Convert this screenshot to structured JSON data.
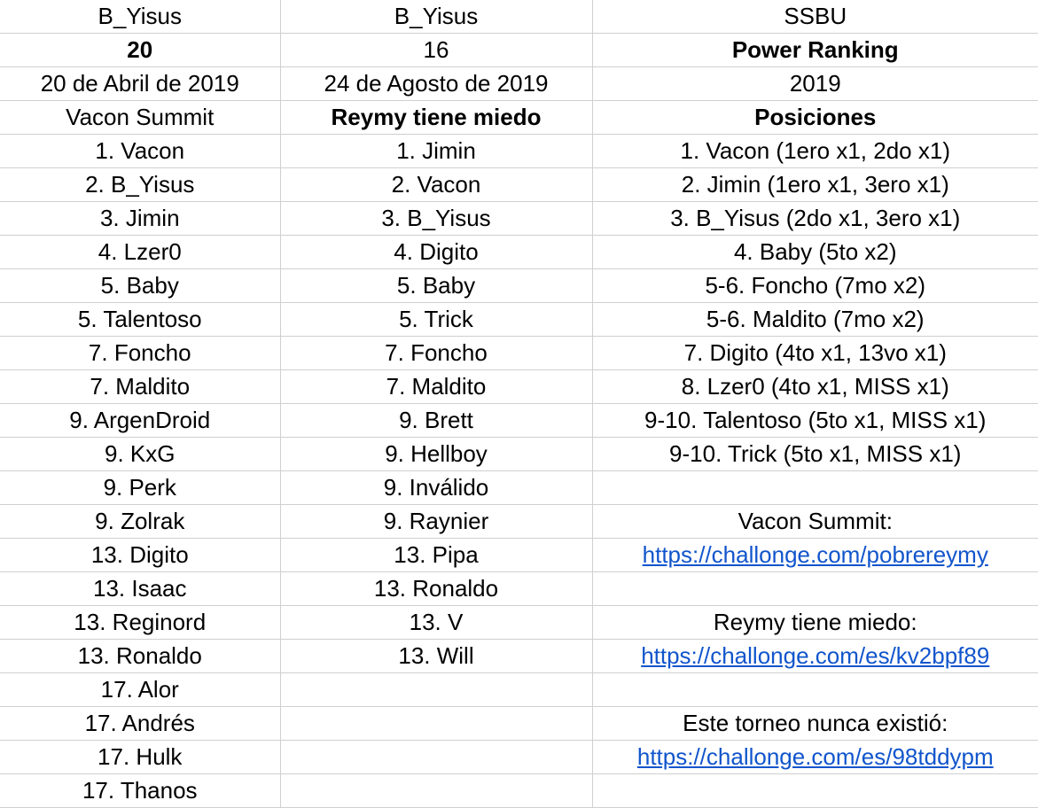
{
  "sheet": {
    "header_rows": [
      [
        "B_Yisus",
        "B_Yisus",
        "SSBU"
      ],
      [
        "20",
        "16",
        "Power Ranking"
      ],
      [
        "20 de Abril de 2019",
        "24 de Agosto de 2019",
        "2019"
      ],
      [
        "Vacon Summit",
        "Reymy tiene miedo",
        "Posiciones"
      ]
    ],
    "bold_cells": [
      [
        1,
        0
      ],
      [
        1,
        2
      ],
      [
        3,
        1
      ],
      [
        3,
        2
      ]
    ],
    "columns": {
      "vacon_summit": [
        "1. Vacon",
        "2. B_Yisus",
        "3. Jimin",
        "4. Lzer0",
        "5. Baby",
        "5. Talentoso",
        "7. Foncho",
        "7. Maldito",
        "9. ArgenDroid",
        "9. KxG",
        "9. Perk",
        "9. Zolrak",
        "13. Digito",
        "13. Isaac",
        "13. Reginord",
        "13. Ronaldo",
        "17. Alor",
        "17. Andrés",
        "17. Hulk",
        "17. Thanos"
      ],
      "reymy_tiene_miedo": [
        "1. Jimin",
        "2. Vacon",
        "3. B_Yisus",
        "4. Digito",
        "5. Baby",
        "5. Trick",
        "7. Foncho",
        "7. Maldito",
        "9. Brett",
        "9. Hellboy",
        "9. Inválido",
        "9. Raynier",
        "13. Pipa",
        "13. Ronaldo",
        "13. V",
        "13. Will",
        "",
        "",
        "",
        ""
      ],
      "power_ranking": [
        "1. Vacon (1ero x1, 2do x1)",
        "2. Jimin (1ero x1, 3ero x1)",
        "3. B_Yisus (2do x1, 3ero x1)",
        "4. Baby (5to x2)",
        "5-6. Foncho (7mo x2)",
        "5-6. Maldito (7mo x2)",
        "7. Digito (4to x1, 13vo x1)",
        "8. Lzer0 (4to x1, MISS x1)",
        "9-10. Talentoso (5to x1, MISS x1)",
        "9-10. Trick (5to x1, MISS x1)",
        "",
        "Vacon Summit:",
        "https://challonge.com/pobrereymy",
        "",
        "Reymy tiene miedo:",
        "https://challonge.com/es/kv2bpf89",
        "",
        "Este torneo nunca existió:",
        "https://challonge.com/es/98tddypm",
        ""
      ]
    },
    "link_color": "#1155cc",
    "grid_color": "#cfcfcf"
  }
}
